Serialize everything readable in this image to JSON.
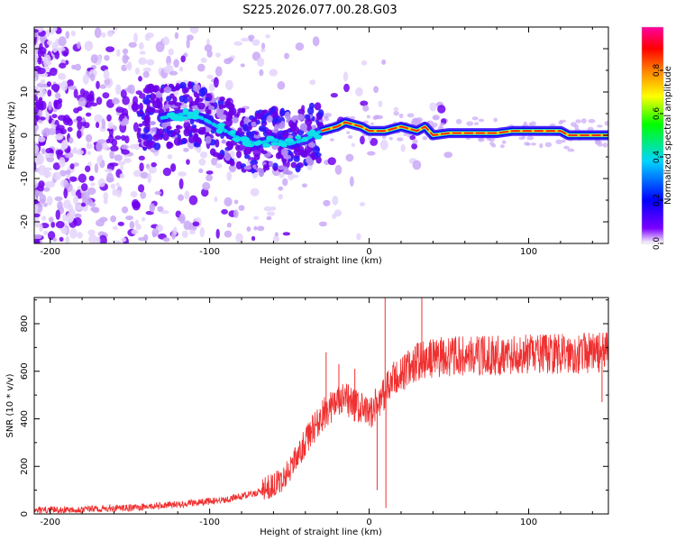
{
  "figure": {
    "title": "S225.2026.077.00.28.G03"
  },
  "chart_data": [
    {
      "type": "heatmap",
      "xlabel": "Height of straight line (km)",
      "ylabel": "Frequency (Hz)",
      "xlim": [
        -210,
        150
      ],
      "ylim": [
        -25,
        25
      ],
      "xticks": [
        -200,
        -100,
        0,
        100
      ],
      "yticks": [
        -20,
        -10,
        0,
        10,
        20
      ],
      "grid": false,
      "ridge": {
        "x": [
          -130,
          -115,
          -105,
          -90,
          -80,
          -70,
          -60,
          -50,
          -40,
          -30,
          -20,
          -15,
          -5,
          0,
          10,
          20,
          30,
          35,
          40,
          50,
          70,
          80,
          90,
          100,
          110,
          120,
          125,
          140,
          150
        ],
        "freq": [
          4,
          5,
          4,
          1,
          -1,
          -2,
          -1,
          -2,
          -1,
          1,
          2,
          3,
          2,
          1,
          1,
          2,
          1,
          2,
          0,
          0.5,
          0.5,
          0.5,
          1,
          1,
          1,
          1,
          0,
          0,
          0
        ]
      },
      "colorbar": {
        "label": "Normalized spectral amplitude",
        "range": [
          0,
          1
        ],
        "ticks": [
          0.0,
          0.2,
          0.4,
          0.6,
          0.8
        ],
        "tick_labels": [
          "0.0",
          "0.2",
          "0.4",
          "0.6",
          "0.8"
        ],
        "colormap": [
          "#ffffff",
          "#7b00ff",
          "#0000ff",
          "#00d5ff",
          "#00ff00",
          "#ffff00",
          "#ff8000",
          "#ff0000",
          "#ff00a0"
        ]
      }
    },
    {
      "type": "line",
      "xlabel": "Height of straight line (km)",
      "ylabel": "SNR (10 * v/v)",
      "xlim": [
        -210,
        150
      ],
      "ylim": [
        0,
        910
      ],
      "xticks": [
        -200,
        -100,
        0,
        100
      ],
      "yticks": [
        0,
        200,
        400,
        600,
        800
      ],
      "grid": false,
      "color": "#f03030",
      "trend": {
        "x": [
          -210,
          -150,
          -120,
          -90,
          -70,
          -55,
          -45,
          -35,
          -25,
          -15,
          0,
          15,
          30,
          45,
          70,
          100,
          150
        ],
        "y": [
          15,
          25,
          40,
          60,
          90,
          140,
          240,
          360,
          450,
          480,
          420,
          560,
          640,
          660,
          665,
          670,
          680
        ]
      },
      "spikes": [
        {
          "x": 10,
          "y": 910
        },
        {
          "x": 10.5,
          "y": 25
        },
        {
          "x": 33,
          "y": 910
        },
        {
          "x": -27,
          "y": 680
        },
        {
          "x": -19,
          "y": 630
        },
        {
          "x": -9,
          "y": 610
        },
        {
          "x": 5,
          "y": 100
        },
        {
          "x": 146,
          "y": 470
        }
      ]
    }
  ]
}
